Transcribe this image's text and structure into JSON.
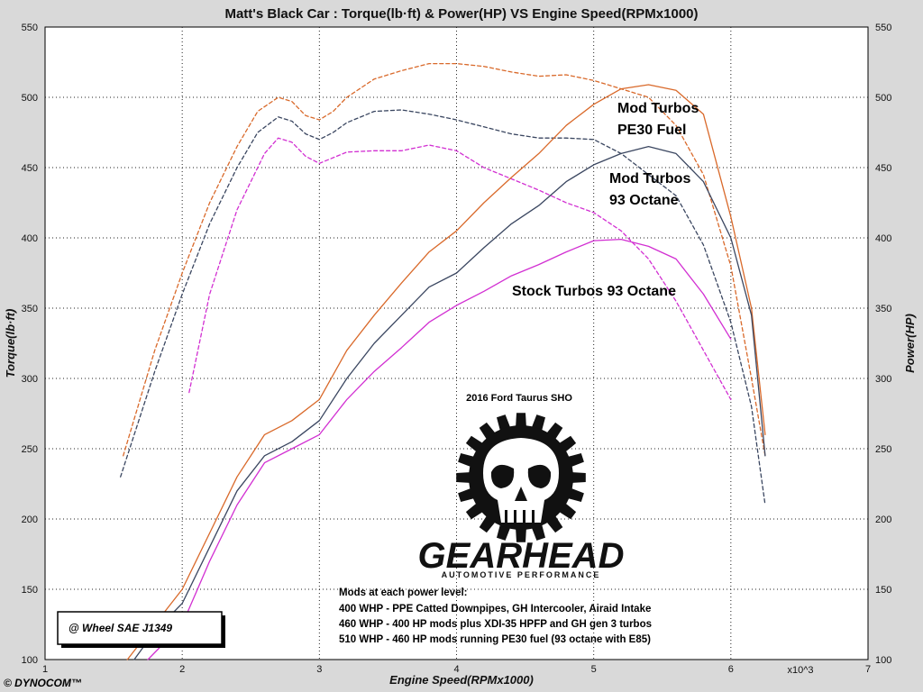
{
  "chart_data": {
    "type": "line",
    "title": "Matt's Black Car : Torque(lb·ft) & Power(HP) VS Engine Speed(RPMx1000)",
    "xlabel": "Engine Speed(RPMx1000)",
    "ylabel_left": "Torque(lb·ft)",
    "ylabel_right": "Power(HP)",
    "x_multiplier_label": "x10^3",
    "xlim": [
      1,
      7
    ],
    "ylim": [
      100,
      550
    ],
    "x_ticks": [
      "1",
      "2",
      "3",
      "4",
      "5",
      "6",
      "7"
    ],
    "y_ticks": [
      "100",
      "150",
      "200",
      "250",
      "300",
      "350",
      "400",
      "450",
      "500",
      "550"
    ],
    "grid": true,
    "colors": {
      "orange": "#d9692a",
      "dark": "#3a4660",
      "magenta": "#d22fd2"
    },
    "series": [
      {
        "name": "Mod Turbos PE30 Fuel - Torque",
        "color": "#d9692a",
        "dash": true,
        "x": [
          1.57,
          1.8,
          2.0,
          2.2,
          2.4,
          2.55,
          2.7,
          2.8,
          2.9,
          3.0,
          3.1,
          3.2,
          3.4,
          3.6,
          3.8,
          4.0,
          4.2,
          4.4,
          4.6,
          4.8,
          5.0,
          5.2,
          5.4,
          5.6,
          5.8,
          6.0,
          6.15,
          6.25
        ],
        "y": [
          245,
          320,
          375,
          425,
          465,
          490,
          500,
          497,
          487,
          484,
          490,
          500,
          513,
          519,
          524,
          524,
          522,
          518,
          515,
          516,
          512,
          506,
          500,
          480,
          445,
          380,
          300,
          245
        ]
      },
      {
        "name": "Mod Turbos 93 Octane - Torque",
        "color": "#3a4660",
        "dash": true,
        "x": [
          1.55,
          1.8,
          2.0,
          2.2,
          2.4,
          2.55,
          2.7,
          2.8,
          2.9,
          3.0,
          3.1,
          3.2,
          3.4,
          3.6,
          3.8,
          4.0,
          4.2,
          4.4,
          4.6,
          4.8,
          5.0,
          5.2,
          5.4,
          5.6,
          5.8,
          6.0,
          6.15,
          6.25
        ],
        "y": [
          230,
          305,
          360,
          410,
          450,
          475,
          486,
          483,
          474,
          470,
          475,
          482,
          490,
          491,
          488,
          484,
          479,
          474,
          471,
          471,
          470,
          460,
          445,
          430,
          395,
          340,
          280,
          210
        ]
      },
      {
        "name": "Stock Turbos 93 Octane - Torque",
        "color": "#d22fd2",
        "dash": true,
        "x": [
          2.05,
          2.2,
          2.4,
          2.6,
          2.7,
          2.8,
          2.9,
          3.0,
          3.2,
          3.4,
          3.6,
          3.8,
          4.0,
          4.2,
          4.4,
          4.6,
          4.8,
          5.0,
          5.2,
          5.4,
          5.6,
          5.8,
          6.0
        ],
        "y": [
          290,
          360,
          420,
          460,
          471,
          468,
          458,
          453,
          461,
          462,
          462,
          466,
          462,
          450,
          442,
          434,
          425,
          418,
          405,
          385,
          355,
          320,
          285
        ]
      },
      {
        "name": "Mod Turbos PE30 Fuel - Power",
        "color": "#d9692a",
        "dash": false,
        "x": [
          1.6,
          1.8,
          2.0,
          2.2,
          2.4,
          2.6,
          2.8,
          3.0,
          3.2,
          3.4,
          3.6,
          3.8,
          4.0,
          4.2,
          4.4,
          4.6,
          4.8,
          5.0,
          5.2,
          5.4,
          5.6,
          5.8,
          6.0,
          6.15,
          6.25
        ],
        "y": [
          100,
          125,
          150,
          190,
          230,
          260,
          270,
          285,
          320,
          345,
          368,
          390,
          405,
          425,
          443,
          460,
          480,
          495,
          506,
          509,
          505,
          488,
          415,
          350,
          260
        ]
      },
      {
        "name": "Mod Turbos 93 Octane - Power",
        "color": "#3a4660",
        "dash": false,
        "x": [
          1.65,
          1.8,
          2.0,
          2.2,
          2.4,
          2.6,
          2.8,
          3.0,
          3.2,
          3.4,
          3.6,
          3.8,
          4.0,
          4.2,
          4.4,
          4.6,
          4.8,
          5.0,
          5.2,
          5.4,
          5.6,
          5.8,
          6.0,
          6.15,
          6.25
        ],
        "y": [
          100,
          120,
          140,
          180,
          220,
          245,
          255,
          270,
          300,
          325,
          345,
          365,
          375,
          393,
          410,
          423,
          440,
          452,
          460,
          465,
          460,
          440,
          400,
          345,
          245
        ]
      },
      {
        "name": "Stock Turbos 93 Octane - Power",
        "color": "#d22fd2",
        "dash": false,
        "x": [
          1.75,
          2.0,
          2.2,
          2.4,
          2.6,
          2.8,
          3.0,
          3.2,
          3.4,
          3.6,
          3.8,
          4.0,
          4.2,
          4.4,
          4.6,
          4.8,
          5.0,
          5.2,
          5.4,
          5.6,
          5.8,
          6.0
        ],
        "y": [
          100,
          125,
          170,
          210,
          240,
          250,
          260,
          285,
          305,
          322,
          340,
          352,
          362,
          373,
          381,
          390,
          398,
          399,
          394,
          385,
          360,
          328
        ]
      }
    ],
    "annotations": [
      {
        "id": "mod-pe30",
        "lines": [
          "Mod Turbos",
          "PE30 Fuel"
        ]
      },
      {
        "id": "mod-93",
        "lines": [
          "Mod Turbos",
          "93 Octane"
        ]
      },
      {
        "id": "stock-93",
        "lines": [
          "Stock Turbos 93 Octane"
        ]
      }
    ]
  },
  "car_label": "2016 Ford Taurus SHO",
  "logo": {
    "name": "GEARHEAD",
    "subtitle": "AUTOMOTIVE PERFORMANCE",
    "icon": "skull-gear-icon"
  },
  "mods": {
    "header": "Mods at each power level:",
    "lines": [
      "400 WHP - PPE Catted Downpipes, GH Intercooler, Airaid Intake",
      "460 WHP - 400 HP mods plus XDI-35 HPFP and GH gen 3 turbos",
      "510 WHP - 460 HP mods running PE30 fuel (93 octane with E85)"
    ]
  },
  "standard_label": "@ Wheel SAE J1349",
  "brand": "© DYNOCOM™"
}
